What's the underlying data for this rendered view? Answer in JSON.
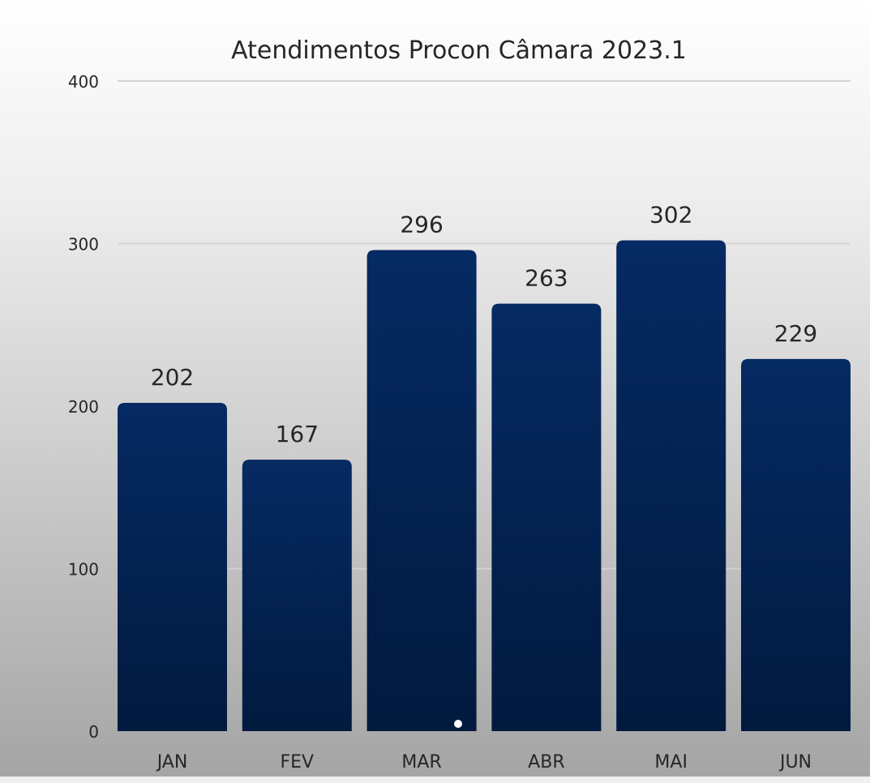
{
  "chart_data": {
    "type": "bar",
    "title": "Atendimentos Procon Câmara 2023.1",
    "categories": [
      "JAN",
      "FEV",
      "MAR",
      "ABR",
      "MAI",
      "JUN"
    ],
    "values": [
      202,
      167,
      296,
      263,
      302,
      229
    ],
    "data_labels": [
      "202",
      "167",
      "296",
      "263",
      "302",
      "229"
    ],
    "yticks": [
      "0",
      "100",
      "200",
      "300",
      "400"
    ],
    "ylim": [
      0,
      400
    ],
    "xlabel": "",
    "ylabel": "",
    "grid": true,
    "legend": "none",
    "colors": {
      "bar_top": "#062a63",
      "bar_bottom": "#011a3e",
      "grid": "#d2d2d2",
      "text": "#262626",
      "background_top": "#ffffff",
      "background_bottom": "#a6a6a6"
    }
  }
}
